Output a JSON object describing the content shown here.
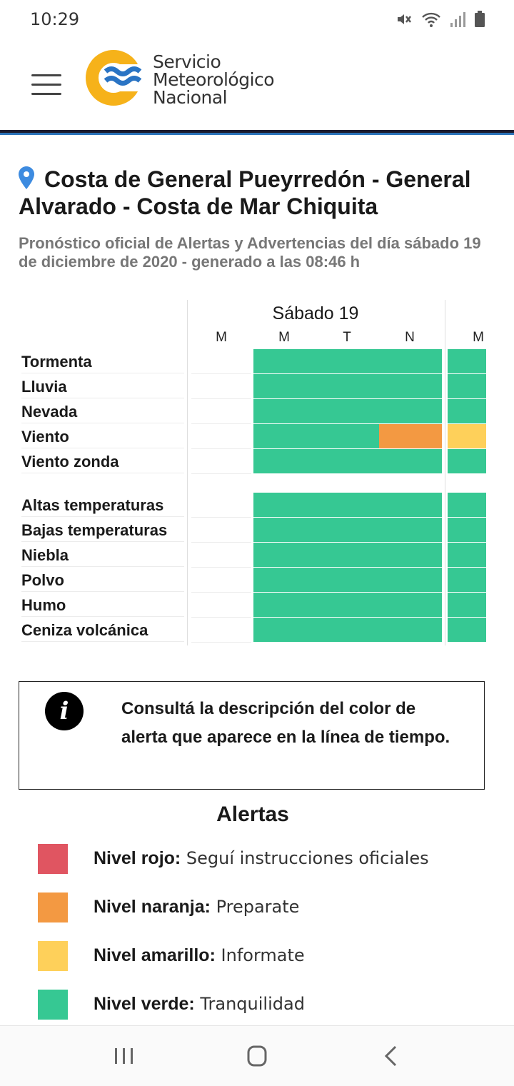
{
  "status_bar": {
    "time": "10:29",
    "icons": [
      "mute-icon",
      "wifi-icon",
      "signal-icon",
      "battery-icon"
    ]
  },
  "header": {
    "brand_lines": [
      "Servicio",
      "Meteorológico",
      "Nacional"
    ],
    "logo_colors": {
      "ring": "#f6b21a",
      "waves": "#2a74c4"
    }
  },
  "location": {
    "title": "Costa de General Pueyrredón - General Alvarado - Costa de Mar Chiquita",
    "subtitle": "Pronóstico oficial de Alertas y Advertencias del día sábado 19 de diciembre de 2020 - generado a las 08:46 h"
  },
  "timeline": {
    "day_label": "Sábado 19",
    "slots": [
      "M",
      "M",
      "T",
      "N",
      "M"
    ],
    "colors": {
      "green": "#36c893",
      "orange": "#f39942",
      "yellow": "#fed05a",
      "empty": "#ffffff"
    },
    "groups": [
      {
        "rows": [
          {
            "label": "Tormenta",
            "levels": [
              "none",
              "green",
              "green",
              "green",
              "green"
            ]
          },
          {
            "label": "Lluvia",
            "levels": [
              "none",
              "green",
              "green",
              "green",
              "green"
            ]
          },
          {
            "label": "Nevada",
            "levels": [
              "none",
              "green",
              "green",
              "green",
              "green"
            ]
          },
          {
            "label": "Viento",
            "levels": [
              "none",
              "green",
              "green",
              "orange",
              "yellow"
            ]
          },
          {
            "label": "Viento zonda",
            "levels": [
              "none",
              "green",
              "green",
              "green",
              "green"
            ]
          }
        ]
      },
      {
        "rows": [
          {
            "label": "Altas temperaturas",
            "levels": [
              "none",
              "green",
              "green",
              "green",
              "green"
            ]
          },
          {
            "label": "Bajas temperaturas",
            "levels": [
              "none",
              "green",
              "green",
              "green",
              "green"
            ]
          },
          {
            "label": "Niebla",
            "levels": [
              "none",
              "green",
              "green",
              "green",
              "green"
            ]
          },
          {
            "label": "Polvo",
            "levels": [
              "none",
              "green",
              "green",
              "green",
              "green"
            ]
          },
          {
            "label": "Humo",
            "levels": [
              "none",
              "green",
              "green",
              "green",
              "green"
            ]
          },
          {
            "label": "Ceniza volcánica",
            "levels": [
              "none",
              "green",
              "green",
              "green",
              "green"
            ]
          }
        ]
      }
    ]
  },
  "info": {
    "icon": "info-icon",
    "text": "Consultá la descripción del color de alerta que aparece en la línea de tiempo."
  },
  "legend": {
    "title": "Alertas",
    "items": [
      {
        "label": "Nivel rojo:",
        "desc": "Seguí instrucciones oficiales",
        "color": "#e05561"
      },
      {
        "label": "Nivel naranja:",
        "desc": "Preparate",
        "color": "#f39942"
      },
      {
        "label": "Nivel amarillo:",
        "desc": "Informate",
        "color": "#fed05a"
      },
      {
        "label": "Nivel verde:",
        "desc": "Tranquilidad",
        "color": "#36c893"
      }
    ]
  },
  "nav_bar": {
    "buttons": [
      "recent-apps-icon",
      "home-icon",
      "back-icon"
    ]
  }
}
